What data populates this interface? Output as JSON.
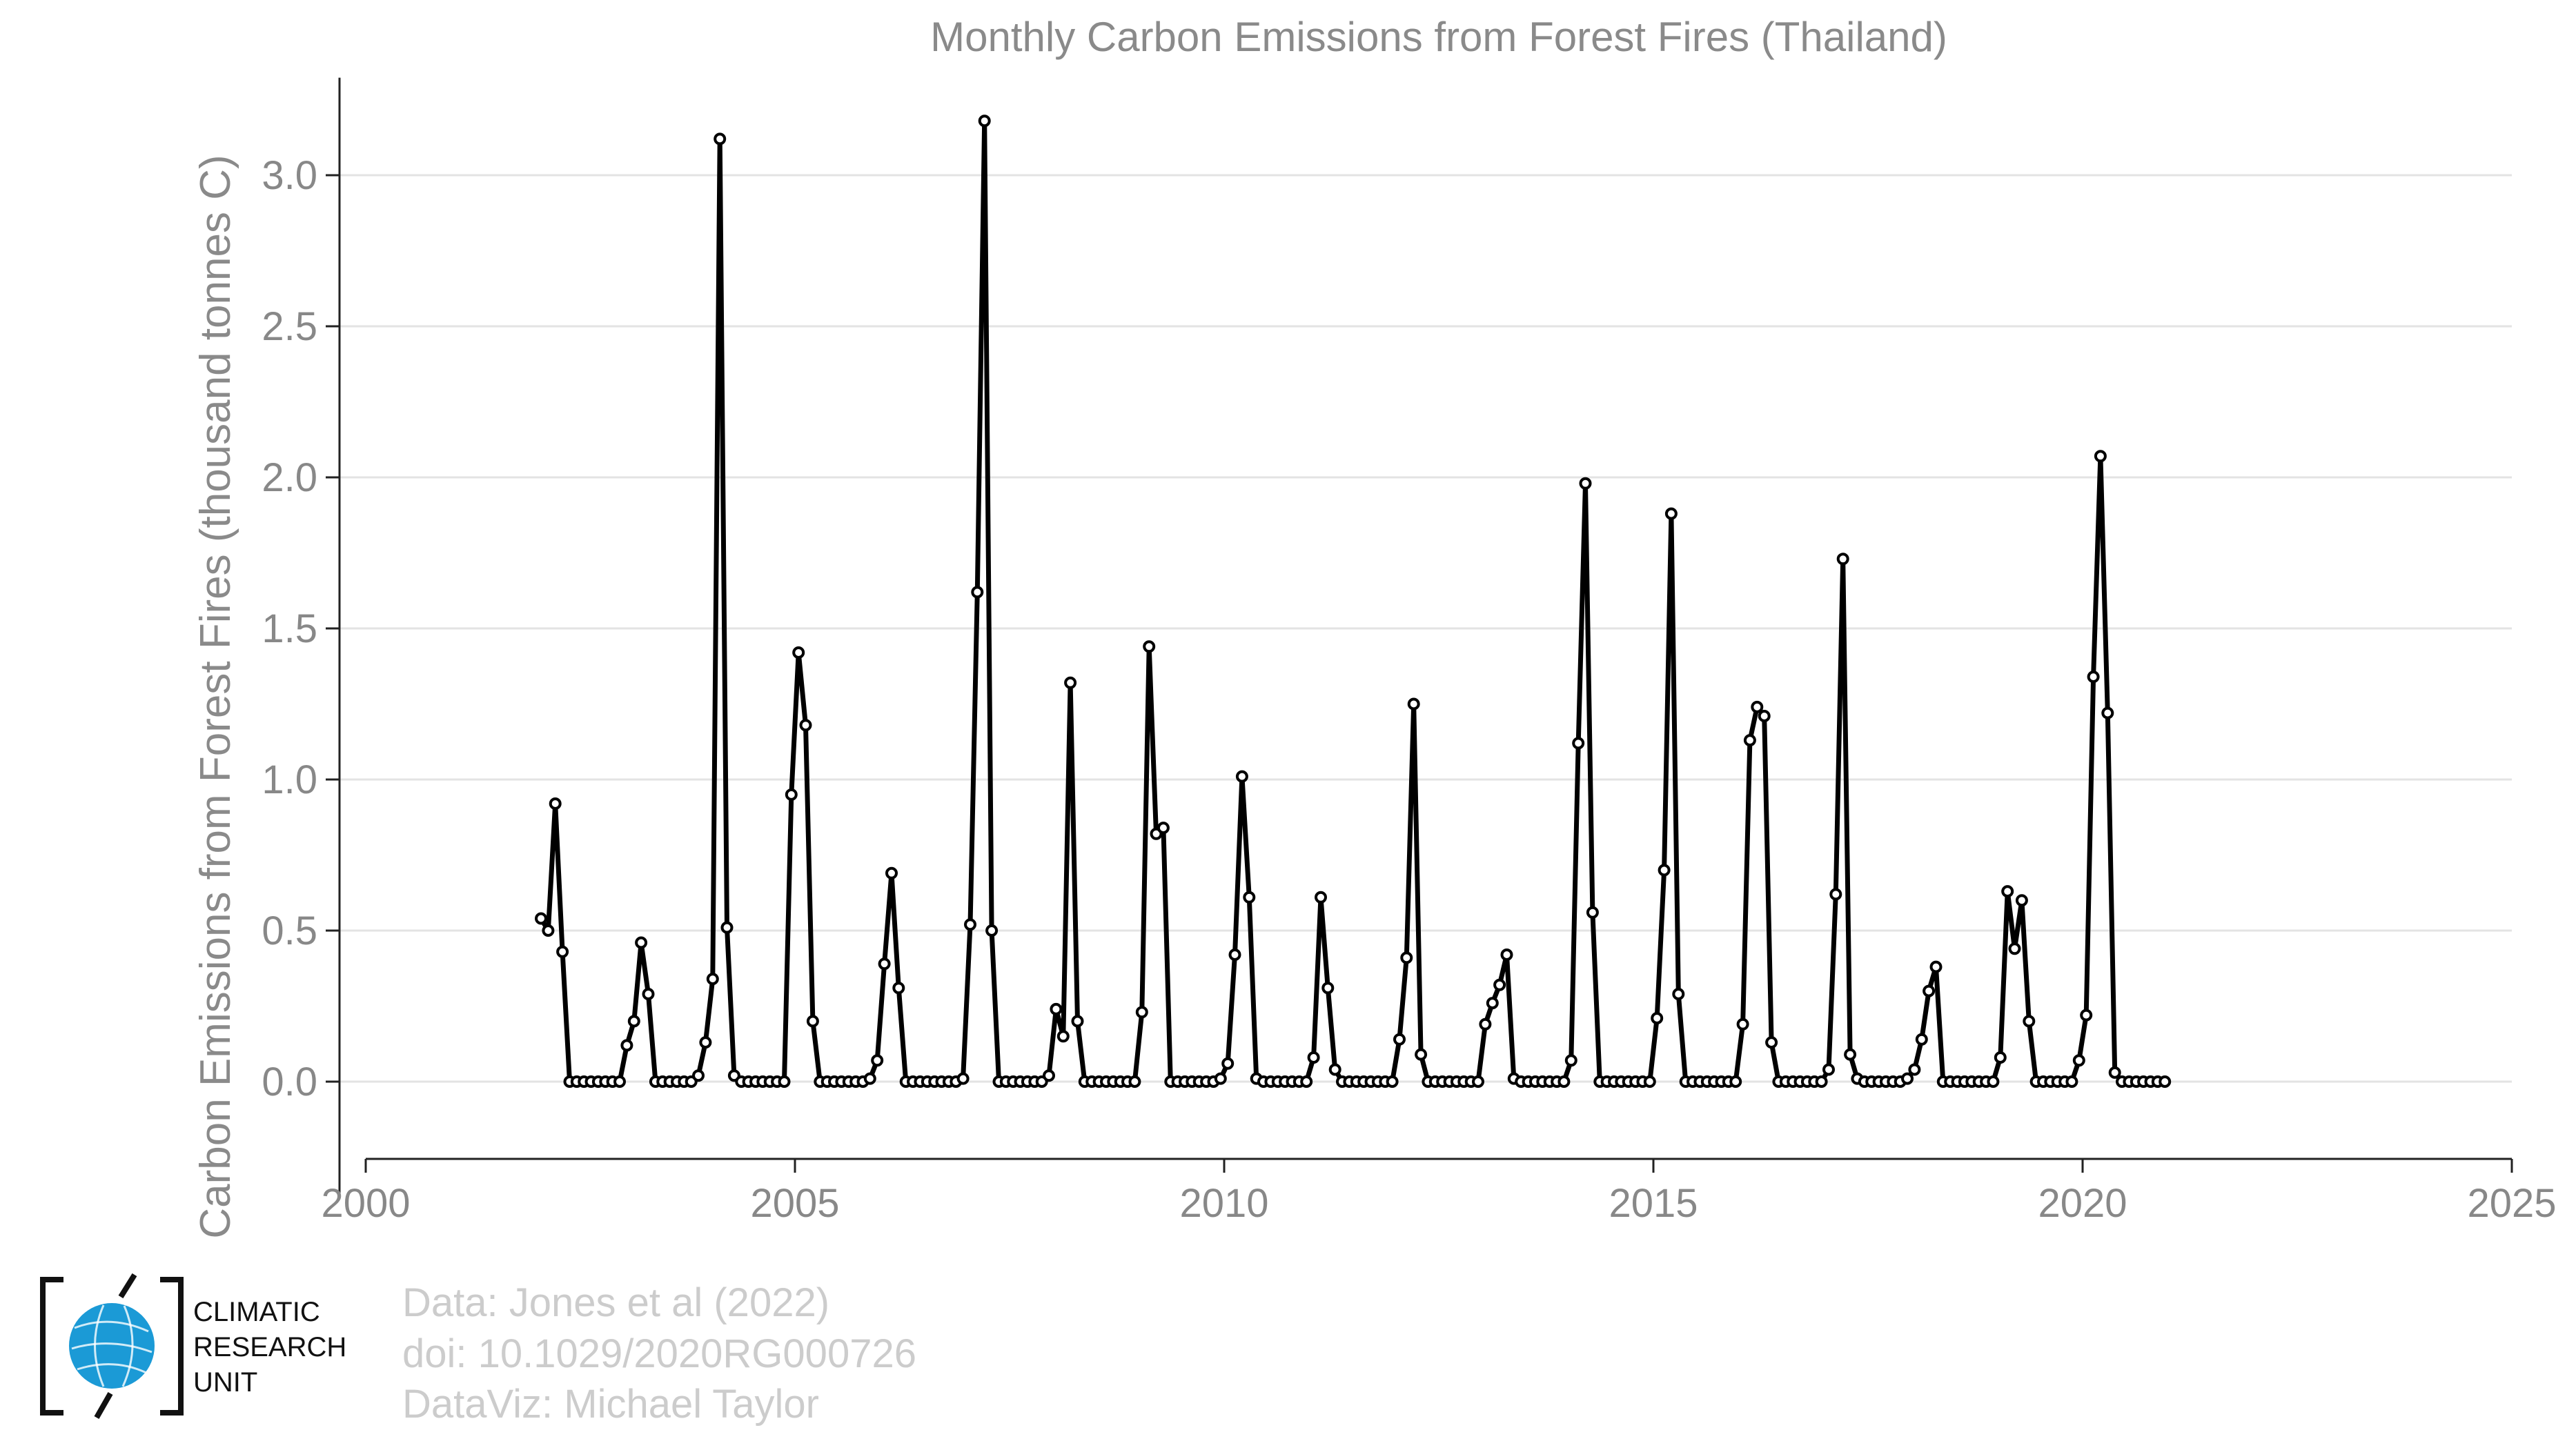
{
  "chart_data": {
    "type": "line",
    "title": "Monthly Carbon Emissions from Forest Fires (Thailand)",
    "xlabel": "",
    "ylabel": "Carbon Emissions from Forest Fires (thousand tonnes C)",
    "xlim": [
      2000,
      2025
    ],
    "ylim": [
      -0.25,
      3.3
    ],
    "xticks": [
      "2000",
      "2005",
      "2010",
      "2015",
      "2020",
      "2025"
    ],
    "yticks": [
      "0.0",
      "0.5",
      "1.0",
      "1.5",
      "2.0",
      "2.5",
      "3.0"
    ],
    "grid": "horizontal",
    "start_year": 2002,
    "series": [
      {
        "name": "",
        "color": "#000000",
        "monthly_values": [
          0.54,
          0.5,
          0.92,
          0.43,
          0.0,
          0.0,
          0.0,
          0.0,
          0.0,
          0.0,
          0.0,
          0.0,
          0.12,
          0.2,
          0.46,
          0.29,
          0.0,
          0.0,
          0.0,
          0.0,
          0.0,
          0.0,
          0.02,
          0.13,
          0.34,
          3.12,
          0.51,
          0.02,
          0.0,
          0.0,
          0.0,
          0.0,
          0.0,
          0.0,
          0.0,
          0.95,
          1.42,
          1.18,
          0.2,
          0.0,
          0.0,
          0.0,
          0.0,
          0.0,
          0.0,
          0.0,
          0.01,
          0.07,
          0.39,
          0.69,
          0.31,
          0.0,
          0.0,
          0.0,
          0.0,
          0.0,
          0.0,
          0.0,
          0.0,
          0.01,
          0.52,
          1.62,
          3.18,
          0.5,
          0.0,
          0.0,
          0.0,
          0.0,
          0.0,
          0.0,
          0.0,
          0.02,
          0.24,
          0.15,
          1.32,
          0.2,
          0.0,
          0.0,
          0.0,
          0.0,
          0.0,
          0.0,
          0.0,
          0.0,
          0.23,
          1.44,
          0.82,
          0.84,
          0.0,
          0.0,
          0.0,
          0.0,
          0.0,
          0.0,
          0.0,
          0.01,
          0.06,
          0.42,
          1.01,
          0.61,
          0.01,
          0.0,
          0.0,
          0.0,
          0.0,
          0.0,
          0.0,
          0.0,
          0.08,
          0.61,
          0.31,
          0.04,
          0.0,
          0.0,
          0.0,
          0.0,
          0.0,
          0.0,
          0.0,
          0.0,
          0.14,
          0.41,
          1.25,
          0.09,
          0.0,
          0.0,
          0.0,
          0.0,
          0.0,
          0.0,
          0.0,
          0.0,
          0.19,
          0.26,
          0.32,
          0.42,
          0.01,
          0.0,
          0.0,
          0.0,
          0.0,
          0.0,
          0.0,
          0.0,
          0.07,
          1.12,
          1.98,
          0.56,
          0.0,
          0.0,
          0.0,
          0.0,
          0.0,
          0.0,
          0.0,
          0.0,
          0.21,
          0.7,
          1.88,
          0.29,
          0.0,
          0.0,
          0.0,
          0.0,
          0.0,
          0.0,
          0.0,
          0.0,
          0.19,
          1.13,
          1.24,
          1.21,
          0.13,
          0.0,
          0.0,
          0.0,
          0.0,
          0.0,
          0.0,
          0.0,
          0.04,
          0.62,
          1.73,
          0.09,
          0.01,
          0.0,
          0.0,
          0.0,
          0.0,
          0.0,
          0.0,
          0.01,
          0.04,
          0.14,
          0.3,
          0.38,
          0.0,
          0.0,
          0.0,
          0.0,
          0.0,
          0.0,
          0.0,
          0.0,
          0.08,
          0.63,
          0.44,
          0.6,
          0.2,
          0.0,
          0.0,
          0.0,
          0.0,
          0.0,
          0.0,
          0.07,
          0.22,
          1.34,
          2.07,
          1.22,
          0.03,
          0.0,
          0.0,
          0.0,
          0.0,
          0.0,
          0.0,
          0.0
        ]
      }
    ]
  },
  "logo": {
    "line1": "CLIMATIC",
    "line2": "RESEARCH",
    "line3": "UNIT",
    "icon": "globe-icon"
  },
  "credits": {
    "line1": "Data: Jones et al (2022)",
    "line2": "doi: 10.1029/2020RG000726",
    "line3": "DataViz: Michael Taylor"
  }
}
